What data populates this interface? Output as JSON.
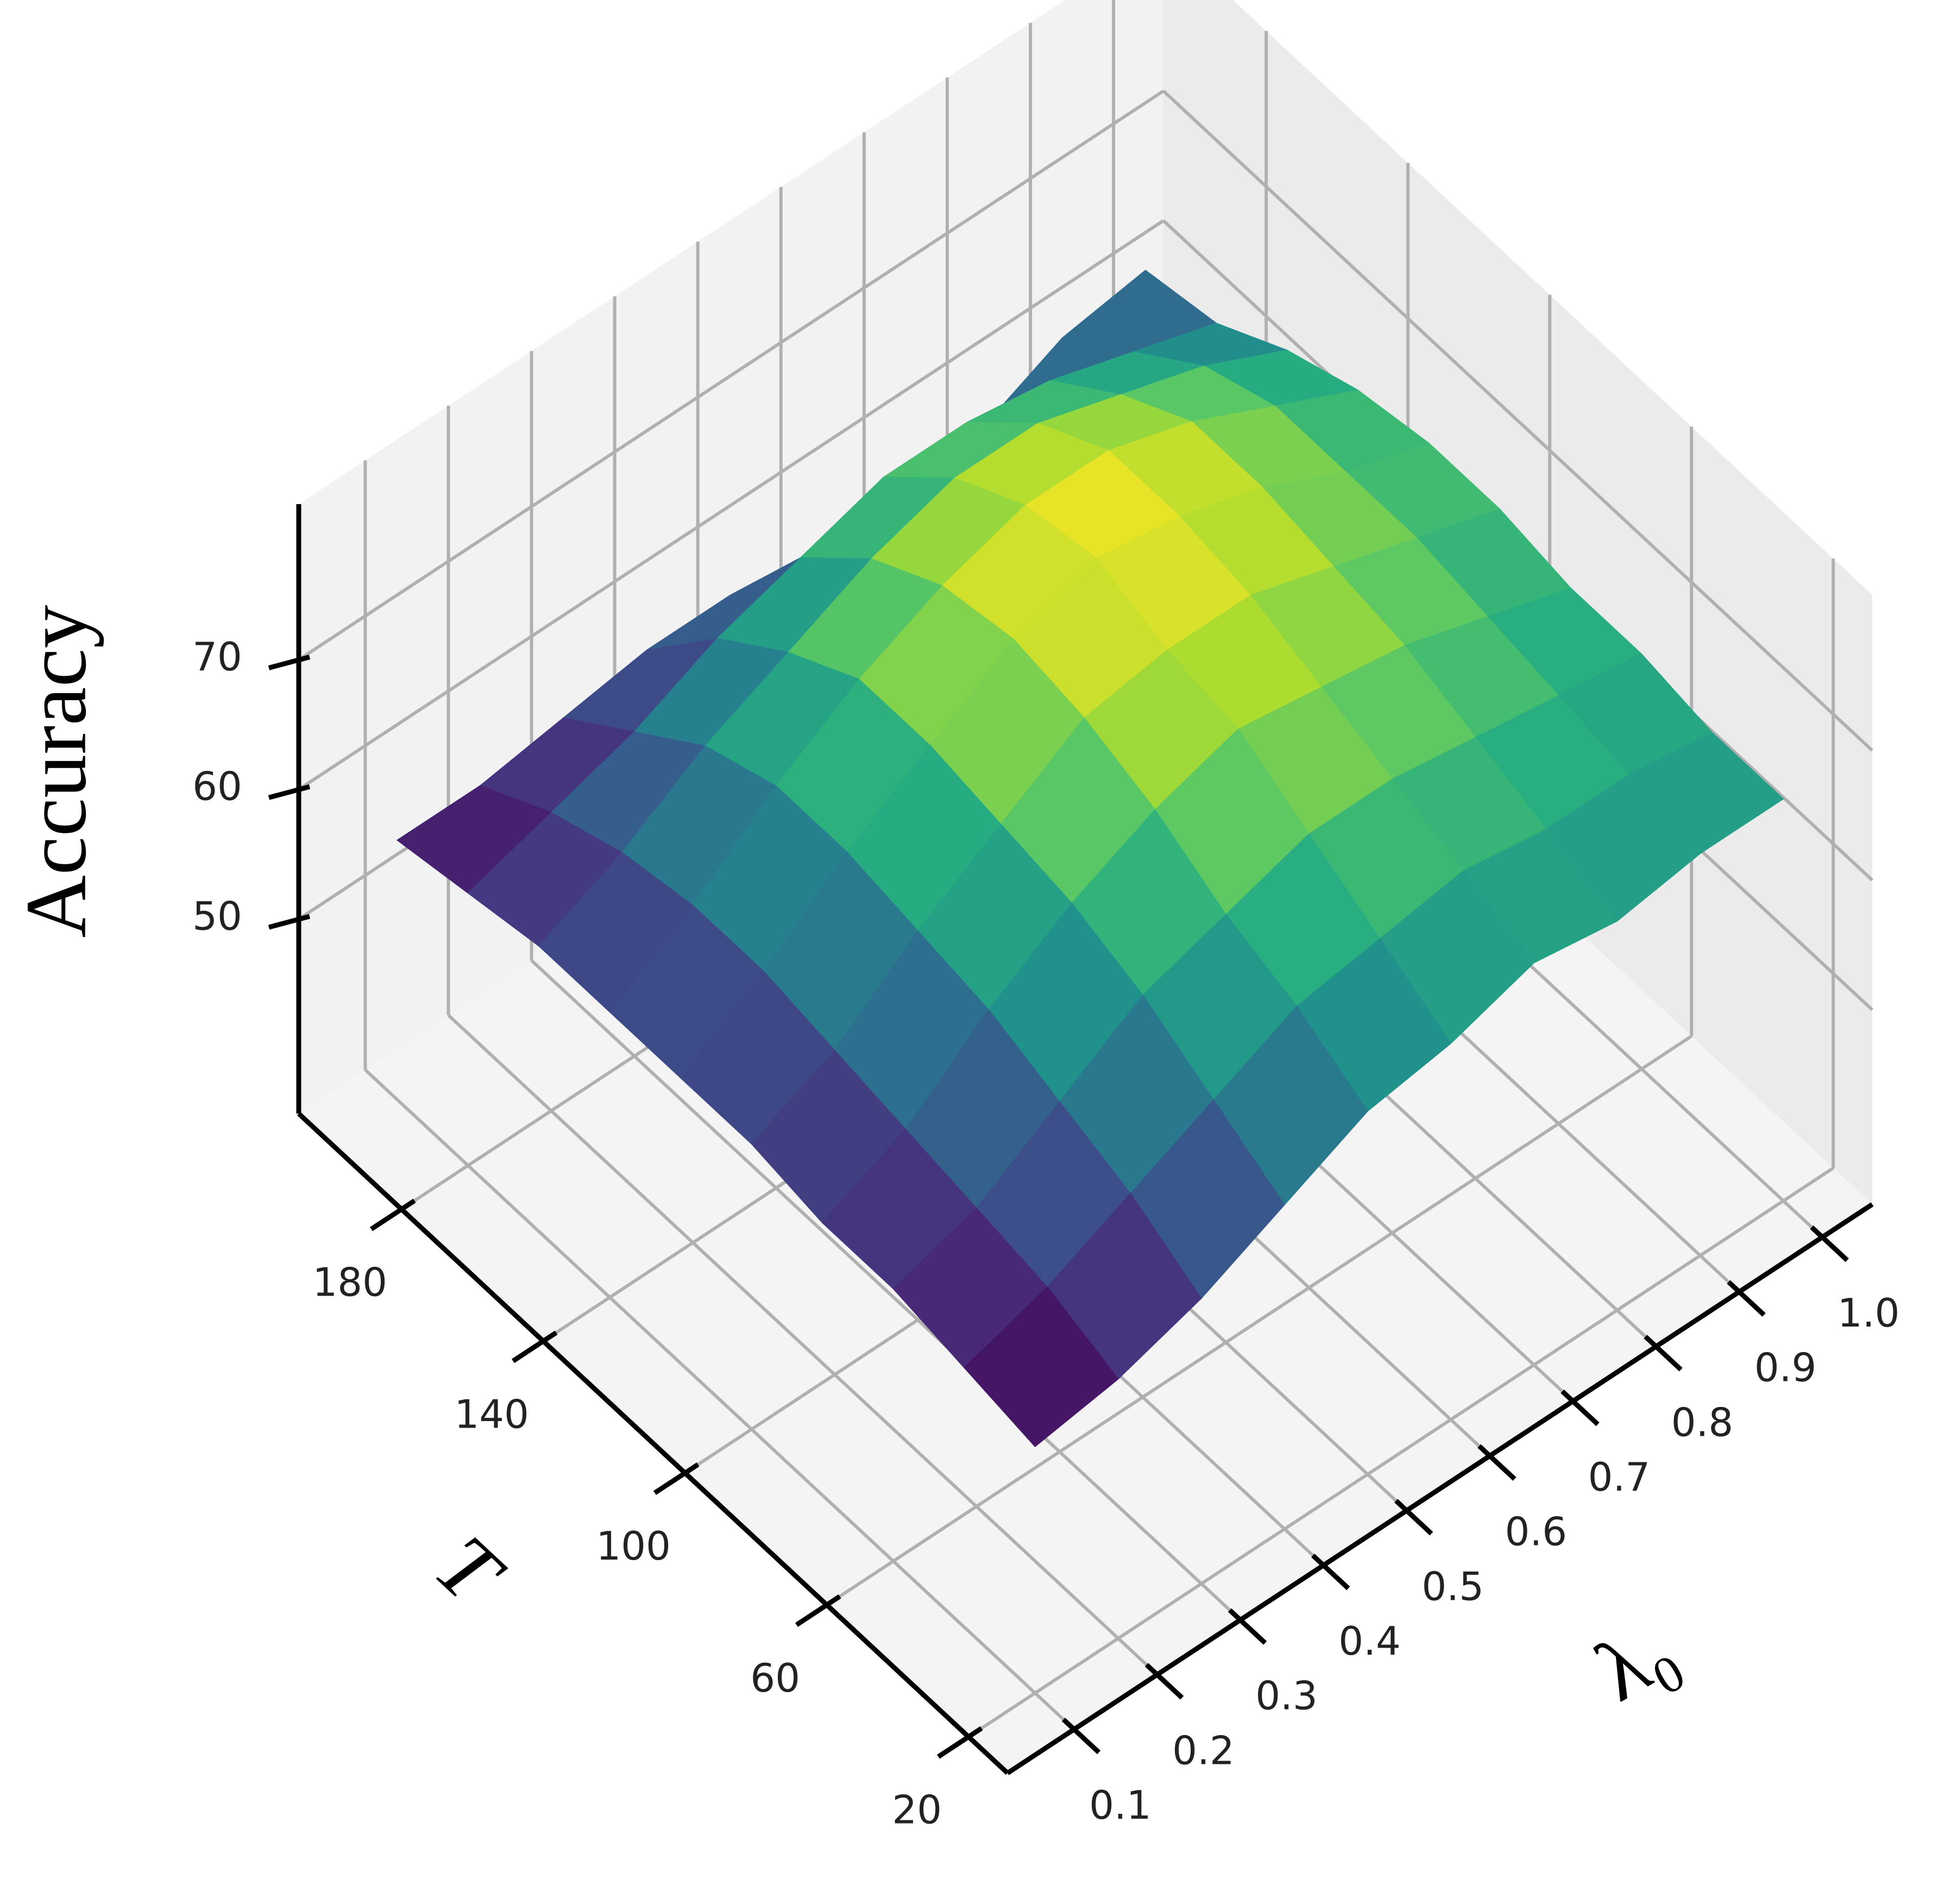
{
  "chart_data": {
    "type": "surface",
    "xlabel": "λ₀",
    "ylabel": "T",
    "zlabel": "Accuracy",
    "colormap": "viridis",
    "x": [
      0.1,
      0.2,
      0.3,
      0.4,
      0.5,
      0.6,
      0.7,
      0.8,
      0.9,
      1.0
    ],
    "y": [
      20,
      40,
      60,
      80,
      100,
      120,
      140,
      160,
      180,
      200
    ],
    "z": [
      [
        54,
        55,
        57,
        60,
        63,
        64,
        66,
        65,
        66,
        66
      ],
      [
        55,
        57,
        60,
        63,
        66,
        67,
        68,
        67,
        67,
        66
      ],
      [
        56,
        58,
        62,
        66,
        68,
        70,
        70,
        69,
        68,
        67
      ],
      [
        56,
        59,
        64,
        68,
        71,
        73,
        72,
        71,
        69,
        67
      ],
      [
        57,
        60,
        65,
        69,
        73,
        74,
        74,
        72,
        70,
        68
      ],
      [
        57,
        61,
        66,
        70,
        74,
        76,
        75,
        73,
        70,
        68
      ],
      [
        57,
        61,
        66,
        70,
        73,
        75,
        75,
        73,
        70,
        67
      ],
      [
        57,
        60,
        64,
        67,
        70,
        72,
        72,
        70,
        68,
        65
      ],
      [
        56,
        58,
        60,
        63,
        65,
        67,
        67,
        66,
        64,
        62
      ],
      [
        55,
        55,
        56,
        57,
        57,
        56,
        55,
        57,
        60,
        61
      ]
    ],
    "xlim": [
      0.02,
      1.06
    ],
    "ylim": [
      9,
      209
    ],
    "zlim": [
      35,
      82
    ],
    "xticks": [
      0.1,
      0.2,
      0.3,
      0.4,
      0.5,
      0.6,
      0.7,
      0.8,
      0.9,
      {
        "value": 1.0,
        "label": "1.0"
      }
    ],
    "yticks": [
      20,
      60,
      100,
      140,
      180
    ],
    "zticks": [
      50,
      60,
      70
    ],
    "grid": true
  }
}
